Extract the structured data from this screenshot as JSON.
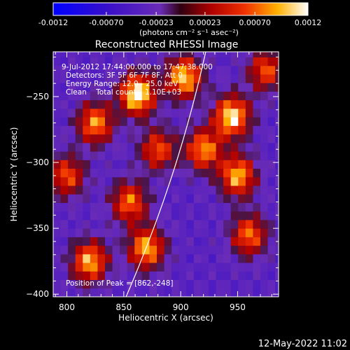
{
  "chart_data": {
    "type": "heatmap",
    "title": "Reconstructed RHESSI Image",
    "xlabel": "Heliocentric X (arcsec)",
    "ylabel": "Heliocentric Y (arcsec)",
    "xlim": [
      788,
      986
    ],
    "ylim": [
      -402,
      -216
    ],
    "x_ticks": [
      800,
      850,
      900,
      950
    ],
    "y_ticks": [
      -250,
      -300,
      -350,
      -400
    ],
    "colorbar": {
      "range": [
        -0.0012,
        0.0012
      ],
      "ticks": [
        "-0.0012",
        "-0.00070",
        "-0.00023",
        "0.00023",
        "0.00070",
        "0.0012"
      ],
      "units": "(photons cm⁻² s⁻¹ asec⁻²)"
    },
    "annotations": [
      "9-Jul-2012 17:44:00.000 to 17:47:38.000",
      "Detectors: 3F 5F 6F 7F 8F, Att 0",
      "Energy Range: 12.0 - 25.0 keV",
      "Clean    Total counts: 1.10E+03"
    ],
    "peak_label": "Position of Peak = [862,-248]",
    "peak": [
      862,
      -248
    ],
    "bright_regions": [
      {
        "x": 862,
        "y": -248,
        "level": 0.0012
      },
      {
        "x": 903,
        "y": -235,
        "level": 0.001
      },
      {
        "x": 945,
        "y": -265,
        "level": 0.0011
      },
      {
        "x": 950,
        "y": -310,
        "level": 0.0009
      },
      {
        "x": 920,
        "y": -290,
        "level": 0.0008
      },
      {
        "x": 825,
        "y": -270,
        "level": 0.0008
      },
      {
        "x": 800,
        "y": -310,
        "level": 0.0006
      },
      {
        "x": 820,
        "y": -375,
        "level": 0.0009
      },
      {
        "x": 870,
        "y": -365,
        "level": 0.0009
      },
      {
        "x": 855,
        "y": -330,
        "level": 0.0007
      },
      {
        "x": 880,
        "y": -290,
        "level": 0.0006
      },
      {
        "x": 960,
        "y": -355,
        "level": 0.0007
      },
      {
        "x": 975,
        "y": -230,
        "level": 0.0006
      }
    ],
    "limb_curve": [
      [
        852,
        -402
      ],
      [
        888,
        -330
      ],
      [
        908,
        -270
      ],
      [
        922,
        -216
      ]
    ],
    "timestamp": "12-May-2022 11:02"
  }
}
